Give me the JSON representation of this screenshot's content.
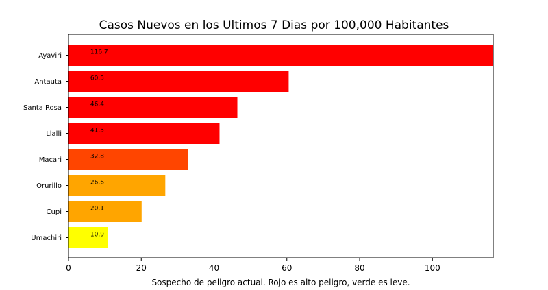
{
  "chart_data": {
    "type": "bar",
    "orientation": "horizontal",
    "title": "Casos Nuevos en los Ultimos 7 Dias por 100,000 Habitantes",
    "xlabel": "Sospecho de peligro actual. Rojo es alto peligro, verde es leve.",
    "ylabel": "",
    "xlim": [
      0,
      116.7
    ],
    "x_ticks": [
      0,
      20,
      40,
      60,
      80,
      100
    ],
    "grid": false,
    "categories": [
      "Ayaviri",
      "Antauta",
      "Santa Rosa",
      "Llalli",
      "Macari",
      "Orurillo",
      "Cupi",
      "Umachiri"
    ],
    "values": [
      116.7,
      60.5,
      46.4,
      41.5,
      32.8,
      26.6,
      20.1,
      10.9
    ],
    "value_labels": [
      "116.7",
      "60.5",
      "46.4",
      "41.5",
      "32.8",
      "26.6",
      "20.1",
      "10.9"
    ],
    "colors": [
      "#ff0000",
      "#ff0000",
      "#ff0000",
      "#ff0000",
      "#ff4500",
      "#ffa500",
      "#ffa500",
      "#ffff00"
    ]
  }
}
